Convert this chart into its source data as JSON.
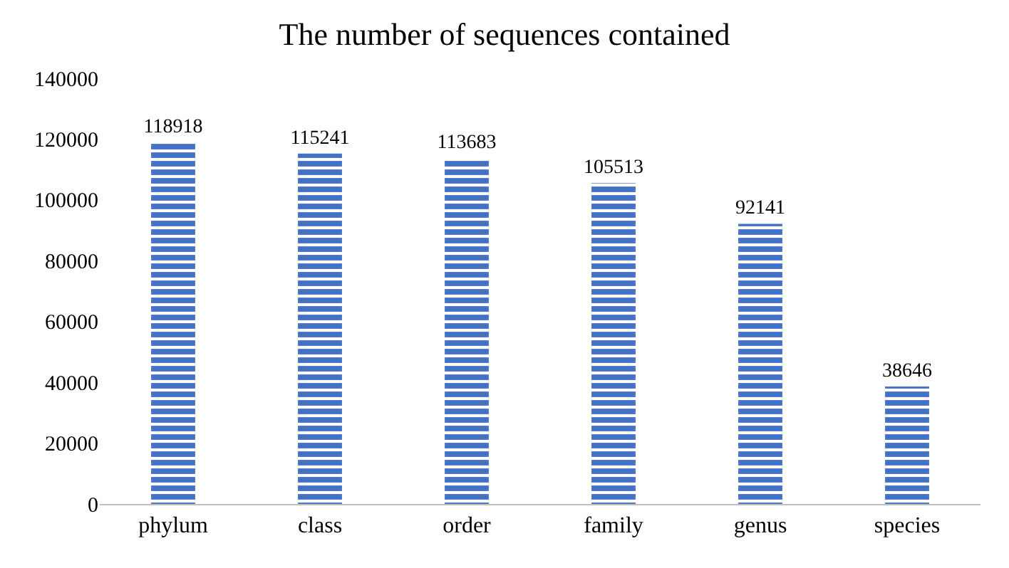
{
  "chart_data": {
    "type": "bar",
    "title": "The number of sequences contained",
    "categories": [
      "phylum",
      "class",
      "order",
      "family",
      "genus",
      "species"
    ],
    "values": [
      118918,
      115241,
      113683,
      105513,
      92141,
      38646
    ],
    "color": "#4472c4",
    "ylim": [
      0,
      140000
    ],
    "yticks": [
      0,
      20000,
      40000,
      60000,
      80000,
      100000,
      120000,
      140000
    ],
    "grid": false,
    "data_labels": true
  }
}
